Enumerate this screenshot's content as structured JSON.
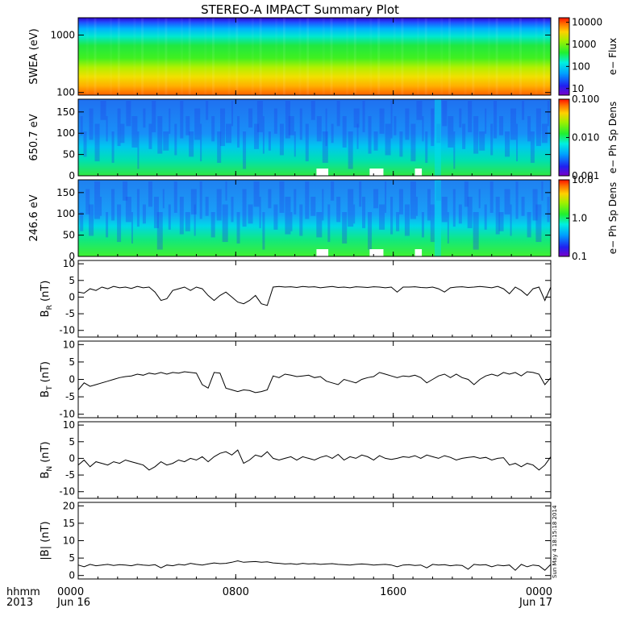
{
  "title": "STEREO-A IMPACT Summary Plot",
  "timestamp": "Sun May  4 18:15:18 2014",
  "colors": {
    "trace": "#000000",
    "axis": "#000000",
    "background": "#ffffff"
  },
  "time_axis": {
    "start_label": "hhmm",
    "start_year": "2013",
    "ticks": [
      {
        "label": "0000",
        "sub": "Jun 16",
        "hour": 0
      },
      {
        "label": "0800",
        "sub": "",
        "hour": 8
      },
      {
        "label": "1600",
        "sub": "",
        "hour": 16
      },
      {
        "label": "0000",
        "sub": "Jun 17",
        "hour": 24
      }
    ],
    "range_hours": [
      0,
      24
    ]
  },
  "chart_data": [
    {
      "type": "heatmap",
      "ylabel": "SWEA (eV)",
      "yscale": "log",
      "ylim": [
        90,
        2000
      ],
      "yticks": [
        {
          "label": "1000",
          "value": 1000
        },
        {
          "label": "100",
          "value": 100
        }
      ],
      "colorbar": {
        "label": "e− Flux",
        "scale": "log",
        "range": [
          5,
          16000
        ],
        "ticks": [
          {
            "label": "10000",
            "value": 10000
          },
          {
            "label": "1000",
            "value": 1000
          },
          {
            "label": "100",
            "value": 100
          },
          {
            "label": "10",
            "value": 10
          }
        ]
      }
    },
    {
      "type": "heatmap",
      "ylabel": "650.7 eV",
      "ylim": [
        0,
        180
      ],
      "yticks": [
        {
          "label": "150",
          "value": 150
        },
        {
          "label": "100",
          "value": 100
        },
        {
          "label": "50",
          "value": 50
        },
        {
          "label": "0",
          "value": 0
        }
      ],
      "colorbar": {
        "label": "e− Ph Sp Dens",
        "scale": "log",
        "range": [
          0.001,
          0.1
        ],
        "ticks": [
          {
            "label": "0.100",
            "value": 0.1
          },
          {
            "label": "0.010",
            "value": 0.01
          },
          {
            "label": "0.001",
            "value": 0.001
          }
        ]
      }
    },
    {
      "type": "heatmap",
      "ylabel": "246.6 eV",
      "ylim": [
        0,
        180
      ],
      "yticks": [
        {
          "label": "150",
          "value": 150
        },
        {
          "label": "100",
          "value": 100
        },
        {
          "label": "50",
          "value": 50
        },
        {
          "label": "0",
          "value": 0
        }
      ],
      "colorbar": {
        "label": "e− Ph Sp Dens",
        "scale": "log",
        "range": [
          0.1,
          10
        ],
        "ticks": [
          {
            "label": "10.0",
            "value": 10
          },
          {
            "label": "1.0",
            "value": 1
          },
          {
            "label": "0.1",
            "value": 0.1
          }
        ]
      }
    },
    {
      "type": "line",
      "ylabel_main": "B",
      "ylabel_sub": "R",
      "ylabel_unit": " (nT)",
      "ylim": [
        -12,
        11
      ],
      "yticks": [
        10,
        5,
        0,
        -5,
        -10
      ],
      "x_hours": [
        0,
        0.3,
        0.6,
        0.9,
        1.2,
        1.5,
        1.8,
        2.1,
        2.4,
        2.7,
        3.0,
        3.3,
        3.6,
        3.9,
        4.2,
        4.5,
        4.8,
        5.1,
        5.4,
        5.7,
        6.0,
        6.3,
        6.6,
        6.9,
        7.2,
        7.5,
        7.8,
        8.1,
        8.4,
        8.7,
        9.0,
        9.3,
        9.6,
        9.9,
        10.2,
        10.5,
        10.8,
        11.1,
        11.4,
        11.7,
        12.0,
        12.3,
        12.6,
        12.9,
        13.2,
        13.5,
        13.8,
        14.1,
        14.4,
        14.7,
        15.0,
        15.3,
        15.6,
        15.9,
        16.2,
        16.5,
        16.8,
        17.1,
        17.4,
        17.7,
        18.0,
        18.3,
        18.6,
        18.9,
        19.2,
        19.5,
        19.8,
        20.1,
        20.4,
        20.7,
        21.0,
        21.3,
        21.6,
        21.9,
        22.2,
        22.5,
        22.8,
        23.1,
        23.4,
        23.7,
        24.0
      ],
      "values": [
        1.5,
        1.2,
        2.5,
        2.0,
        3.0,
        2.5,
        3.2,
        2.8,
        3.0,
        2.6,
        3.2,
        2.8,
        3.0,
        1.5,
        -1.0,
        -0.5,
        2.0,
        2.5,
        3.0,
        2.0,
        3.0,
        2.5,
        0.5,
        -1.0,
        0.5,
        1.5,
        0.0,
        -1.5,
        -2.0,
        -1.0,
        0.5,
        -2.0,
        -2.5,
        3.0,
        3.2,
        3.0,
        3.1,
        2.9,
        3.2,
        3.0,
        3.1,
        2.8,
        3.0,
        3.2,
        2.9,
        3.0,
        2.8,
        3.1,
        3.0,
        2.9,
        3.1,
        3.0,
        2.8,
        3.0,
        1.5,
        3.0,
        3.0,
        3.1,
        2.9,
        2.8,
        3.0,
        2.5,
        1.5,
        2.8,
        3.0,
        3.1,
        2.9,
        3.0,
        3.2,
        3.0,
        2.8,
        3.2,
        2.5,
        1.0,
        3.0,
        2.0,
        0.5,
        2.5,
        3.0,
        -1.0,
        3.0
      ]
    },
    {
      "type": "line",
      "ylabel_main": "B",
      "ylabel_sub": "T",
      "ylabel_unit": " (nT)",
      "ylim": [
        -11,
        11
      ],
      "yticks": [
        10,
        5,
        0,
        -5,
        -10
      ],
      "x_hours": [
        0,
        0.3,
        0.6,
        0.9,
        1.2,
        1.5,
        1.8,
        2.1,
        2.4,
        2.7,
        3.0,
        3.3,
        3.6,
        3.9,
        4.2,
        4.5,
        4.8,
        5.1,
        5.4,
        5.7,
        6.0,
        6.3,
        6.6,
        6.9,
        7.2,
        7.5,
        7.8,
        8.1,
        8.4,
        8.7,
        9.0,
        9.3,
        9.6,
        9.9,
        10.2,
        10.5,
        10.8,
        11.1,
        11.4,
        11.7,
        12.0,
        12.3,
        12.6,
        12.9,
        13.2,
        13.5,
        13.8,
        14.1,
        14.4,
        14.7,
        15.0,
        15.3,
        15.6,
        15.9,
        16.2,
        16.5,
        16.8,
        17.1,
        17.4,
        17.7,
        18.0,
        18.3,
        18.6,
        18.9,
        19.2,
        19.5,
        19.8,
        20.1,
        20.4,
        20.7,
        21.0,
        21.3,
        21.6,
        21.9,
        22.2,
        22.5,
        22.8,
        23.1,
        23.4,
        23.7,
        24.0
      ],
      "values": [
        -3.0,
        -1.0,
        -2.0,
        -1.5,
        -1.0,
        -0.5,
        0.0,
        0.5,
        0.8,
        1.0,
        1.5,
        1.2,
        1.8,
        1.5,
        2.0,
        1.5,
        2.0,
        1.8,
        2.2,
        2.0,
        1.8,
        -1.5,
        -2.5,
        2.0,
        1.8,
        -2.5,
        -3.0,
        -3.5,
        -3.0,
        -3.2,
        -3.8,
        -3.5,
        -3.0,
        1.0,
        0.5,
        1.5,
        1.2,
        0.8,
        1.0,
        1.2,
        0.5,
        0.8,
        -0.5,
        -1.0,
        -1.5,
        0.0,
        -0.5,
        -1.0,
        0.0,
        0.5,
        0.8,
        2.0,
        1.5,
        1.0,
        0.5,
        1.0,
        0.8,
        1.2,
        0.5,
        -1.0,
        0.0,
        1.0,
        1.5,
        0.5,
        1.5,
        0.5,
        0.0,
        -1.5,
        0.0,
        1.0,
        1.5,
        1.0,
        2.0,
        1.5,
        2.0,
        1.0,
        2.2,
        2.0,
        1.5,
        -1.5,
        0.5
      ]
    },
    {
      "type": "line",
      "ylabel_main": "B",
      "ylabel_sub": "N",
      "ylabel_unit": " (nT)",
      "ylim": [
        -12,
        11
      ],
      "yticks": [
        10,
        5,
        0,
        -5,
        -10
      ],
      "x_hours": [
        0,
        0.3,
        0.6,
        0.9,
        1.2,
        1.5,
        1.8,
        2.1,
        2.4,
        2.7,
        3.0,
        3.3,
        3.6,
        3.9,
        4.2,
        4.5,
        4.8,
        5.1,
        5.4,
        5.7,
        6.0,
        6.3,
        6.6,
        6.9,
        7.2,
        7.5,
        7.8,
        8.1,
        8.4,
        8.7,
        9.0,
        9.3,
        9.6,
        9.9,
        10.2,
        10.5,
        10.8,
        11.1,
        11.4,
        11.7,
        12.0,
        12.3,
        12.6,
        12.9,
        13.2,
        13.5,
        13.8,
        14.1,
        14.4,
        14.7,
        15.0,
        15.3,
        15.6,
        15.9,
        16.2,
        16.5,
        16.8,
        17.1,
        17.4,
        17.7,
        18.0,
        18.3,
        18.6,
        18.9,
        19.2,
        19.5,
        19.8,
        20.1,
        20.4,
        20.7,
        21.0,
        21.3,
        21.6,
        21.9,
        22.2,
        22.5,
        22.8,
        23.1,
        23.4,
        23.7,
        24.0
      ],
      "values": [
        -2.0,
        -0.5,
        -2.5,
        -1.0,
        -1.5,
        -2.0,
        -1.0,
        -1.5,
        -0.5,
        -1.0,
        -1.5,
        -2.0,
        -3.5,
        -2.5,
        -1.0,
        -2.0,
        -1.5,
        -0.5,
        -1.0,
        0.0,
        -0.5,
        0.5,
        -1.0,
        0.5,
        1.5,
        2.0,
        1.0,
        2.5,
        -1.5,
        -0.5,
        1.0,
        0.5,
        2.0,
        0.0,
        -0.5,
        0.0,
        0.5,
        -0.5,
        0.5,
        0.0,
        -0.5,
        0.3,
        0.8,
        0.0,
        1.2,
        -0.5,
        0.5,
        0.0,
        1.0,
        0.5,
        -0.5,
        0.8,
        0.0,
        -0.3,
        0.0,
        0.5,
        0.3,
        0.8,
        0.0,
        1.0,
        0.5,
        0.0,
        0.8,
        0.3,
        -0.5,
        0.0,
        0.3,
        0.5,
        0.0,
        0.3,
        -0.5,
        0.0,
        0.2,
        -2.0,
        -1.5,
        -2.5,
        -1.5,
        -2.0,
        -3.5,
        -2.0,
        0.5
      ]
    },
    {
      "type": "line",
      "ylabel_main": "|B|",
      "ylabel_sub": "",
      "ylabel_unit": " (nT)",
      "ylim": [
        -1,
        21
      ],
      "yticks": [
        20,
        15,
        10,
        5,
        0
      ],
      "x_hours": [
        0,
        0.3,
        0.6,
        0.9,
        1.2,
        1.5,
        1.8,
        2.1,
        2.4,
        2.7,
        3.0,
        3.3,
        3.6,
        3.9,
        4.2,
        4.5,
        4.8,
        5.1,
        5.4,
        5.7,
        6.0,
        6.3,
        6.6,
        6.9,
        7.2,
        7.5,
        7.8,
        8.1,
        8.4,
        8.7,
        9.0,
        9.3,
        9.6,
        9.9,
        10.2,
        10.5,
        10.8,
        11.1,
        11.4,
        11.7,
        12.0,
        12.3,
        12.6,
        12.9,
        13.2,
        13.5,
        13.8,
        14.1,
        14.4,
        14.7,
        15.0,
        15.3,
        15.6,
        15.9,
        16.2,
        16.5,
        16.8,
        17.1,
        17.4,
        17.7,
        18.0,
        18.3,
        18.6,
        18.9,
        19.2,
        19.5,
        19.8,
        20.1,
        20.4,
        20.7,
        21.0,
        21.3,
        21.6,
        21.9,
        22.2,
        22.5,
        22.8,
        23.1,
        23.4,
        23.7,
        24.0
      ],
      "values": [
        3.0,
        2.5,
        3.2,
        2.8,
        3.0,
        3.2,
        2.9,
        3.1,
        3.0,
        2.8,
        3.2,
        3.0,
        2.9,
        3.1,
        2.2,
        3.0,
        2.8,
        3.2,
        3.0,
        3.5,
        3.2,
        3.0,
        3.3,
        3.6,
        3.4,
        3.5,
        3.8,
        4.2,
        3.8,
        3.9,
        4.0,
        3.8,
        3.9,
        3.6,
        3.5,
        3.3,
        3.4,
        3.2,
        3.5,
        3.3,
        3.4,
        3.2,
        3.3,
        3.4,
        3.2,
        3.1,
        3.0,
        3.2,
        3.3,
        3.2,
        3.0,
        3.1,
        3.2,
        3.0,
        2.5,
        3.0,
        3.1,
        2.9,
        3.0,
        2.2,
        3.2,
        3.0,
        3.1,
        2.8,
        3.0,
        2.9,
        1.8,
        3.2,
        3.0,
        3.1,
        2.5,
        3.0,
        2.8,
        3.0,
        1.5,
        3.2,
        2.5,
        3.0,
        2.8,
        1.5,
        3.2
      ]
    }
  ]
}
